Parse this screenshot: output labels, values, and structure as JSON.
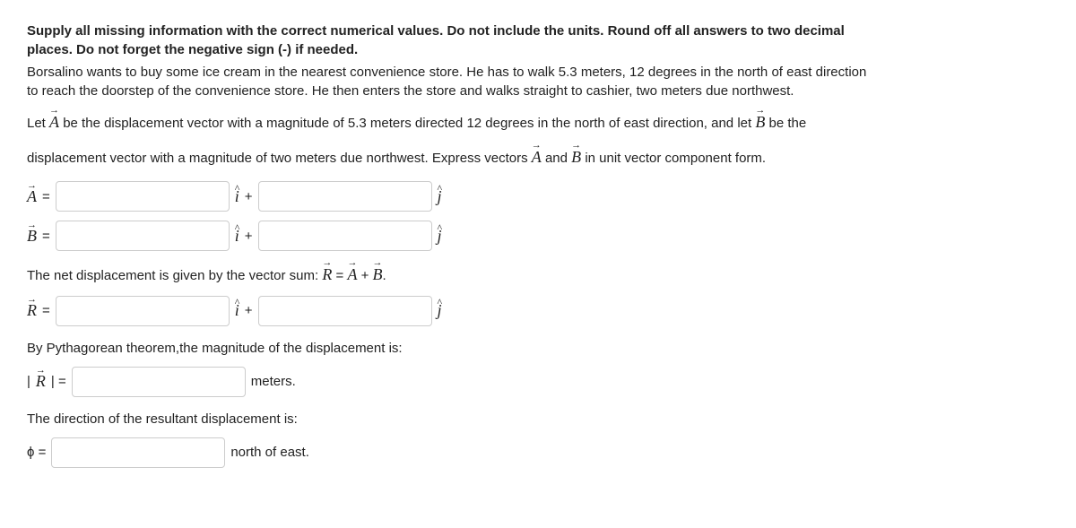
{
  "instruction_line1": "Supply all missing information with the correct numerical values. Do not include the units. Round off all answers to two decimal",
  "instruction_line2": "places. Do not forget the negative sign (-) if needed.",
  "para1_line1": "Borsalino wants to buy some ice cream in the nearest convenience store. He has to walk 5.3 meters, 12 degrees in the north of east direction",
  "para1_line2": "to reach the doorstep of the convenience store. He then enters the store and walks straight to cashier, two meters due northwest.",
  "para2_pre": "Let ",
  "para2_mid": " be the displacement vector with a magnitude of 5.3 meters directed 12 degrees in the north of east direction, and let ",
  "para2_post": " be the",
  "para3_pre": "displacement vector with a magnitude of two meters due northwest. Express vectors ",
  "para3_and": " and ",
  "para3_post": " in unit vector component form.",
  "sym": {
    "A": "A",
    "B": "B",
    "R": "R",
    "i": "i",
    "j": "j",
    "phi": "ϕ",
    "arrow": "→",
    "caret": "^"
  },
  "eq": "=",
  "plus": "+",
  "net_pre": "The net displacement is given by the vector sum: ",
  "net_eq_mid": " = ",
  "net_eq_plus": " + ",
  "net_eq_end": ".",
  "pyth": "By Pythagorean theorem,the magnitude of the displacement is:",
  "magR_pre": "|",
  "magR_post": "| =",
  "meters_label": "meters.",
  "dir_line": "The direction of the resultant displacement is:",
  "phi_eq": "ϕ =",
  "noe_label": "north of east."
}
